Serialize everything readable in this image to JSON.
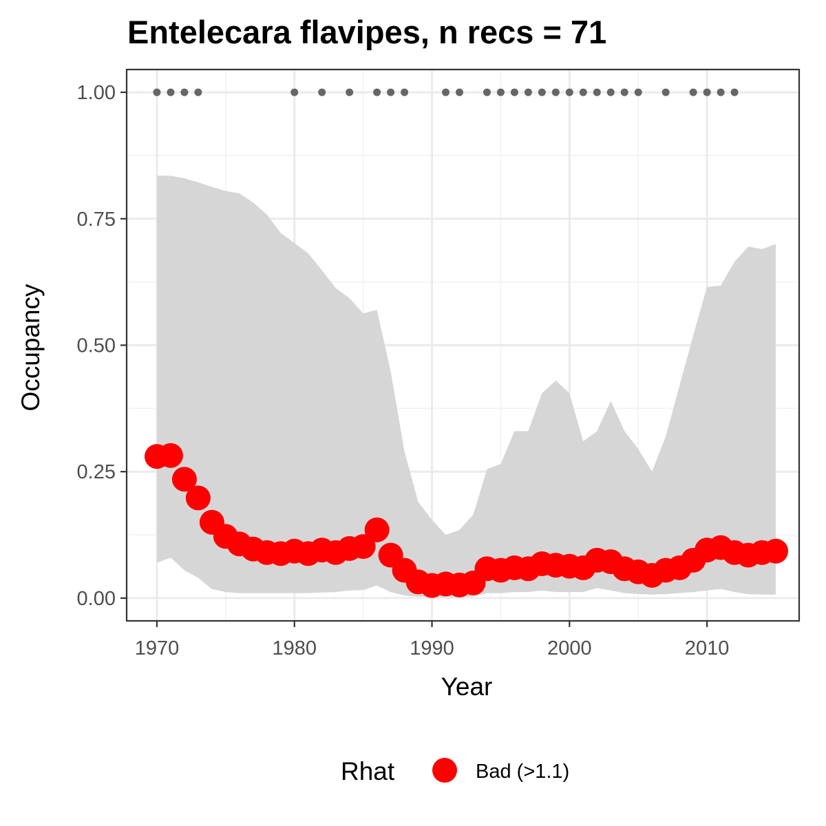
{
  "chart_data": {
    "type": "line",
    "title": "Entelecara flavipes, n recs = 71",
    "xlabel": "Year",
    "ylabel": "Occupancy",
    "xlim": [
      1967.8,
      2016.7
    ],
    "ylim": [
      -0.045,
      1.045
    ],
    "x_ticks": [
      1970,
      1980,
      1990,
      2000,
      2010
    ],
    "x_tick_labels": [
      "1970",
      "1980",
      "1990",
      "2000",
      "2010"
    ],
    "y_ticks": [
      0,
      0.25,
      0.5,
      0.75,
      1
    ],
    "y_tick_labels": [
      "0.00",
      "0.25",
      "0.50",
      "0.75",
      "1.00"
    ],
    "grid": true,
    "legend": {
      "title": "Rhat",
      "position": "bottom",
      "entries": [
        {
          "label": "Bad (>1.1)",
          "color": "#ff0000"
        }
      ]
    },
    "series": [
      {
        "name": "Bad (>1.1)",
        "color": "#ff0000",
        "x": [
          1970,
          1971,
          1972,
          1973,
          1974,
          1975,
          1976,
          1977,
          1978,
          1979,
          1980,
          1981,
          1982,
          1983,
          1984,
          1985,
          1986,
          1987,
          1988,
          1989,
          1990,
          1991,
          1992,
          1993,
          1994,
          1995,
          1996,
          1997,
          1998,
          1999,
          2000,
          2001,
          2002,
          2003,
          2004,
          2005,
          2006,
          2007,
          2008,
          2009,
          2010,
          2011,
          2012,
          2013,
          2014,
          2015
        ],
        "y": [
          0.28,
          0.282,
          0.235,
          0.198,
          0.15,
          0.122,
          0.107,
          0.097,
          0.09,
          0.088,
          0.093,
          0.088,
          0.095,
          0.09,
          0.098,
          0.102,
          0.135,
          0.085,
          0.055,
          0.032,
          0.025,
          0.028,
          0.026,
          0.03,
          0.058,
          0.055,
          0.06,
          0.058,
          0.068,
          0.065,
          0.063,
          0.06,
          0.075,
          0.072,
          0.058,
          0.052,
          0.045,
          0.055,
          0.06,
          0.075,
          0.095,
          0.1,
          0.09,
          0.085,
          0.09,
          0.093
        ]
      }
    ],
    "ribbon": {
      "color": "#d6d6d6",
      "x": [
        1970,
        1971,
        1972,
        1973,
        1974,
        1975,
        1976,
        1977,
        1978,
        1979,
        1980,
        1981,
        1982,
        1983,
        1984,
        1985,
        1986,
        1987,
        1988,
        1989,
        1990,
        1991,
        1992,
        1993,
        1994,
        1995,
        1996,
        1997,
        1998,
        1999,
        2000,
        2001,
        2002,
        2003,
        2004,
        2005,
        2006,
        2007,
        2008,
        2009,
        2010,
        2011,
        2012,
        2013,
        2014,
        2015
      ],
      "lower": [
        0.07,
        0.08,
        0.055,
        0.04,
        0.018,
        0.012,
        0.01,
        0.01,
        0.01,
        0.01,
        0.01,
        0.01,
        0.011,
        0.012,
        0.015,
        0.016,
        0.025,
        0.012,
        0.005,
        0.003,
        0.002,
        0.002,
        0.002,
        0.003,
        0.01,
        0.01,
        0.012,
        0.012,
        0.015,
        0.012,
        0.012,
        0.012,
        0.02,
        0.015,
        0.01,
        0.008,
        0.007,
        0.008,
        0.01,
        0.012,
        0.015,
        0.018,
        0.012,
        0.008,
        0.007,
        0.007
      ],
      "upper": [
        0.835,
        0.835,
        0.83,
        0.822,
        0.813,
        0.805,
        0.8,
        0.782,
        0.758,
        0.722,
        0.702,
        0.682,
        0.648,
        0.613,
        0.593,
        0.563,
        0.57,
        0.448,
        0.29,
        0.19,
        0.155,
        0.125,
        0.135,
        0.165,
        0.255,
        0.265,
        0.33,
        0.33,
        0.405,
        0.43,
        0.405,
        0.31,
        0.33,
        0.39,
        0.33,
        0.295,
        0.25,
        0.32,
        0.42,
        0.52,
        0.615,
        0.618,
        0.665,
        0.695,
        0.69,
        0.7
      ]
    },
    "record_years": [
      1970,
      1971,
      1972,
      1973,
      1980,
      1982,
      1984,
      1986,
      1987,
      1988,
      1991,
      1992,
      1994,
      1995,
      1996,
      1997,
      1998,
      1999,
      2000,
      2001,
      2002,
      2003,
      2004,
      2005,
      2007,
      2009,
      2010,
      2011,
      2012
    ],
    "record_y": 1.0
  }
}
